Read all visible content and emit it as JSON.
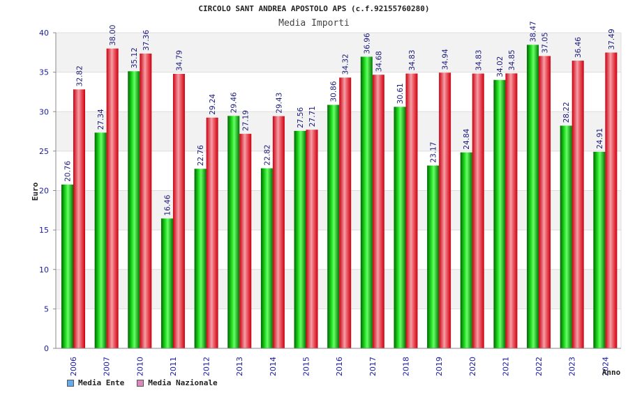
{
  "chart_data": {
    "type": "bar",
    "title": "CIRCOLO SANT ANDREA APOSTOLO APS (c.f.92155760280)",
    "subtitle": "Media Importi",
    "xlabel": "Anno",
    "ylabel": "Euro",
    "ylim": [
      0,
      40
    ],
    "yticks": [
      0,
      5,
      10,
      15,
      20,
      25,
      30,
      35,
      40
    ],
    "grid": true,
    "legend_position": "bottom-left",
    "categories": [
      "2006",
      "2007",
      "2010",
      "2011",
      "2012",
      "2013",
      "2014",
      "2015",
      "2016",
      "2017",
      "2018",
      "2019",
      "2020",
      "2021",
      "2022",
      "2023",
      "2024"
    ],
    "series": [
      {
        "name": "Media Ente",
        "color": "#00aa00",
        "legend_color": "#66aaee",
        "values": [
          20.76,
          27.34,
          35.12,
          16.46,
          22.76,
          29.46,
          22.82,
          27.56,
          30.86,
          36.96,
          30.61,
          23.17,
          24.84,
          34.02,
          38.47,
          28.22,
          24.91
        ]
      },
      {
        "name": "Media Nazionale",
        "color": "#e8202a",
        "legend_color": "#dd88bb",
        "values": [
          32.82,
          38.0,
          37.36,
          34.79,
          29.24,
          27.19,
          29.43,
          27.71,
          34.32,
          34.68,
          34.83,
          34.94,
          34.83,
          34.85,
          37.05,
          36.46,
          37.49
        ]
      }
    ]
  }
}
